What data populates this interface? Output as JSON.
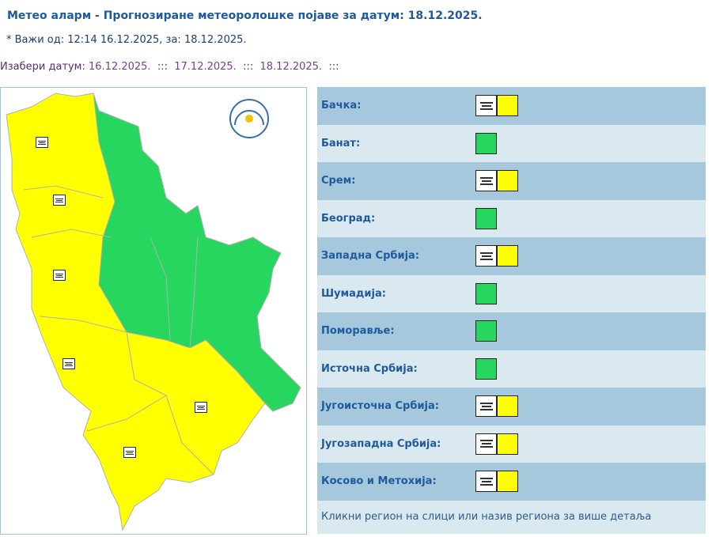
{
  "header": {
    "title": "Метео аларм - Прогнозиране метеоролошке појаве за датум:  18.12.2025.",
    "valid": "* Важи од: 12:14 16.12.2025, за: 18.12.2025.",
    "pick_label": "Изабери датум:",
    "dates": [
      "16.12.2025.",
      "17.12.2025.",
      "18.12.2025."
    ],
    "sep": ":::"
  },
  "colors": {
    "yellow": "#ffff00",
    "green": "#26d65e"
  },
  "regions": [
    {
      "name": "Бачка:",
      "level": "yellow",
      "icon": "fog-icon"
    },
    {
      "name": "Банат:",
      "level": "green"
    },
    {
      "name": "Срем:",
      "level": "yellow",
      "icon": "fog-icon"
    },
    {
      "name": "Београд:",
      "level": "green"
    },
    {
      "name": "Западна Србија:",
      "level": "yellow",
      "icon": "fog-icon"
    },
    {
      "name": "Шумадија:",
      "level": "green"
    },
    {
      "name": "Поморавље:",
      "level": "green"
    },
    {
      "name": "Источна Србија:",
      "level": "green"
    },
    {
      "name": "Југоисточна Србија:",
      "level": "yellow",
      "icon": "fog-icon"
    },
    {
      "name": "Југозападна Србија:",
      "level": "yellow",
      "icon": "fog-icon"
    },
    {
      "name": "Косово и Метохија:",
      "level": "yellow",
      "icon": "fog-icon"
    }
  ],
  "footer": "Кликни регион на слици или назив региона за више детаља"
}
